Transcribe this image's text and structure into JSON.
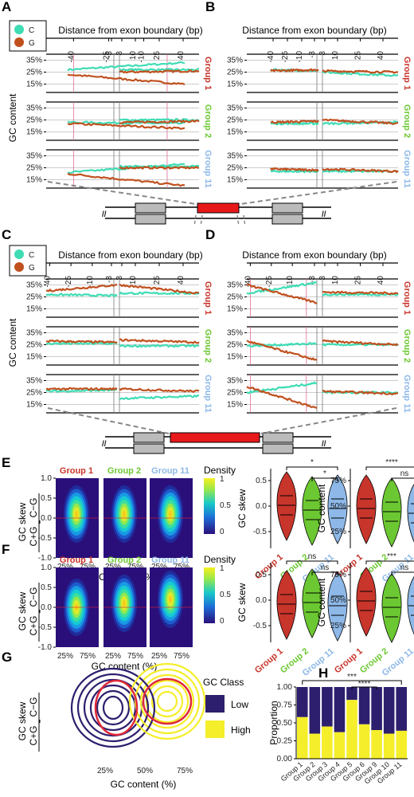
{
  "panel_labels": [
    "A",
    "B",
    "C",
    "D",
    "E",
    "F",
    "G",
    "H"
  ],
  "top_axis_title": "Distance from exon boundary (bp)",
  "top_axis_ticks": [
    "-40",
    "-25",
    "-10",
    "-3",
    "3",
    "10",
    "25",
    "40"
  ],
  "y_axis_title": "GC content",
  "y_ticks": [
    "35%",
    "25%",
    "15%"
  ],
  "groups": [
    "Group 1",
    "Group 2",
    "Group 11"
  ],
  "legend_abcd": [
    "C",
    "G"
  ],
  "colors": {
    "C": "#3fdcb4",
    "G": "#c0511f",
    "group1": "#c8352b",
    "group2": "#6cc832",
    "group11": "#8db8e8",
    "low": "#2d1f6e",
    "high": "#f5ee2a",
    "exon": "#e8191b"
  },
  "heat_x_label": "GC content (%)",
  "heat_x_ticks": [
    "25%",
    "75%"
  ],
  "heat_y_ticks": [
    "1.0",
    "0.5",
    "0.0",
    "-0.5",
    "-1.0"
  ],
  "gc_skew_label": "GC skew",
  "gc_skew_fraction": {
    "num": "C−G",
    "den": "C+G"
  },
  "density_title": "Density",
  "density_ticks": [
    "1",
    "0.5",
    "0"
  ],
  "violin_E": {
    "skew_ticks": [
      "0.5",
      "0.0",
      "-0.5"
    ],
    "content_ticks": [
      "75%",
      "50%",
      "25%"
    ],
    "skew_sig": [
      "*",
      "*"
    ],
    "content_sig": [
      "****",
      "ns"
    ]
  },
  "violin_F": {
    "skew_ticks": [
      "0.5",
      "0.0",
      "-0.5"
    ],
    "content_ticks": [
      "75%",
      "50%",
      "25%"
    ],
    "skew_sig": [
      "ns",
      "ns"
    ],
    "content_sig": [
      "***",
      "ns"
    ]
  },
  "violin_y_skew": "GC skew",
  "violin_y_content": "GC content",
  "g_x_ticks": [
    "25%",
    "50%",
    "75%"
  ],
  "g_x_label": "GC content (%)",
  "gc_class_title": "GC Class",
  "gc_class_items": [
    "Low",
    "High"
  ],
  "chart_data": {
    "type": "bar",
    "title": "",
    "xlabel": "",
    "ylabel": "Proportion",
    "ylim": [
      0,
      1
    ],
    "y_ticks": [
      "1.00",
      "0.75",
      "0.50",
      "0.25",
      "0.00"
    ],
    "categories": [
      "Group 1",
      "Group 2",
      "Group 3",
      "Group 4",
      "Group 5",
      "Group 6",
      "Group 9",
      "Group 10",
      "Group 11"
    ],
    "series": [
      {
        "name": "High",
        "values": [
          0.58,
          0.35,
          0.45,
          0.37,
          0.82,
          0.48,
          0.4,
          0.35,
          0.39
        ]
      },
      {
        "name": "Low",
        "values": [
          0.42,
          0.65,
          0.55,
          0.63,
          0.18,
          0.52,
          0.6,
          0.65,
          0.61
        ]
      }
    ],
    "significance": [
      "***",
      "****"
    ],
    "stacked": true
  }
}
